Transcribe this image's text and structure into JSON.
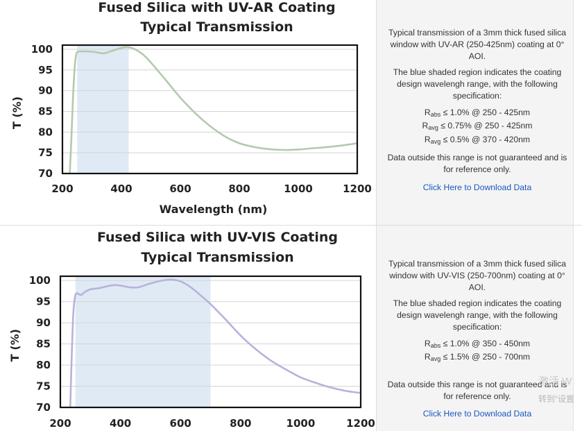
{
  "chart_data": [
    {
      "type": "line",
      "title": "Fused Silica with UV-AR Coating",
      "subtitle": "Typical Transmission",
      "xlabel": "Wavelength (nm)",
      "ylabel": "T (%)",
      "xlim": [
        200,
        1200
      ],
      "ylim": [
        70,
        101
      ],
      "xticks": [
        200,
        400,
        600,
        800,
        1000,
        1200
      ],
      "yticks": [
        70,
        75,
        80,
        85,
        90,
        95,
        100
      ],
      "grid": true,
      "shaded_region": [
        250,
        425
      ],
      "line_color": "#b4c9ae",
      "shade_color": "#dfeaf5",
      "series": [
        {
          "x": [
            225,
            230,
            235,
            240,
            245,
            250,
            260,
            275,
            300,
            320,
            340,
            360,
            380,
            400,
            420,
            440,
            460,
            480,
            500,
            550,
            600,
            650,
            700,
            750,
            800,
            850,
            900,
            950,
            1000,
            1050,
            1100,
            1150,
            1200
          ],
          "y": [
            70,
            78,
            87,
            94,
            98,
            99.3,
            99.5,
            99.5,
            99.4,
            99.2,
            99.0,
            99.4,
            99.9,
            100.3,
            100.5,
            100.2,
            99.4,
            98.3,
            96.8,
            92.6,
            88.3,
            84.6,
            81.5,
            79.0,
            77.3,
            76.4,
            75.9,
            75.7,
            75.8,
            76.1,
            76.4,
            76.8,
            77.3
          ]
        }
      ]
    },
    {
      "type": "line",
      "title": "Fused Silica with UV-VIS Coating",
      "subtitle": "Typical Transmission",
      "xlabel": "",
      "ylabel": "T (%)",
      "xlim": [
        200,
        1200
      ],
      "ylim": [
        70,
        101
      ],
      "xticks": [
        200,
        400,
        600,
        800,
        1000,
        1200
      ],
      "yticks": [
        70,
        75,
        80,
        85,
        90,
        95,
        100
      ],
      "grid": true,
      "shaded_region": [
        250,
        700
      ],
      "line_color": "#b7b2db",
      "shade_color": "#dfeaf5",
      "series": [
        {
          "x": [
            233,
            237,
            241,
            245,
            250,
            255,
            260,
            270,
            280,
            300,
            330,
            360,
            380,
            400,
            430,
            460,
            500,
            540,
            570,
            600,
            630,
            660,
            700,
            750,
            800,
            850,
            900,
            950,
            1000,
            1050,
            1100,
            1150,
            1200
          ],
          "y": [
            70,
            80,
            89,
            94,
            96.5,
            97,
            96.8,
            96.6,
            97.2,
            97.9,
            98.2,
            98.7,
            98.9,
            98.8,
            98.4,
            98.4,
            99.3,
            100.0,
            100.2,
            99.8,
            98.6,
            96.9,
            94.4,
            90.8,
            87.0,
            83.8,
            81.1,
            79.0,
            77.1,
            75.8,
            74.7,
            73.9,
            73.4
          ]
        }
      ]
    }
  ],
  "descriptions": [
    {
      "intro": "Typical transmission of a 3mm thick fused silica window with UV-AR (250-425nm) coating at 0° AOI.",
      "shade_note": "The blue shaded region indicates the coating design wavelengh range, with the following specification:",
      "specs": [
        {
          "sym": "R",
          "sub": "abs",
          "text": "≤ 1.0% @ 250 - 425nm"
        },
        {
          "sym": "R",
          "sub": "avg",
          "text": "≤ 0.75% @ 250 - 425nm"
        },
        {
          "sym": "R",
          "sub": "avg",
          "text": "≤ 0.5% @ 370 - 420nm"
        }
      ],
      "disclaimer": "Data outside this range is not guaranteed and is for reference only.",
      "download_label": "Click Here to Download Data"
    },
    {
      "intro": "Typical transmission of a 3mm thick fused silica window with UV-VIS (250-700nm) coating at 0° AOI.",
      "shade_note": "The blue shaded region indicates the coating design wavelengh range, with the following specification:",
      "specs": [
        {
          "sym": "R",
          "sub": "abs",
          "text": "≤ 1.0% @ 350 - 450nm"
        },
        {
          "sym": "R",
          "sub": "avg",
          "text": "≤ 1.5% @ 250 - 700nm"
        }
      ],
      "disclaimer": "Data outside this range is not guaranteed and is for reference only.",
      "download_label": "Click Here to Download Data"
    }
  ],
  "watermark": {
    "line1": "激活 W",
    "line2": "转到“设置"
  }
}
